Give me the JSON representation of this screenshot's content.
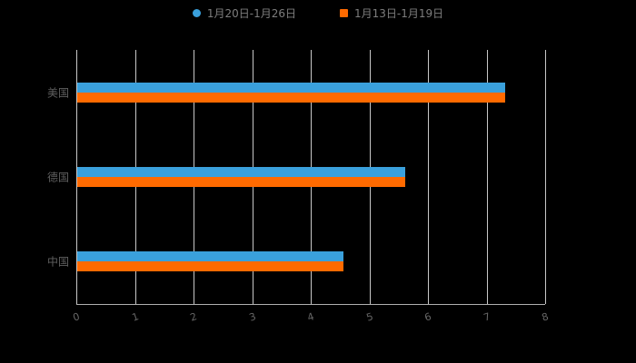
{
  "legend": {
    "items": [
      {
        "label": "1月20日-1月26日",
        "color": "#3aa0dc",
        "marker": "circle"
      },
      {
        "label": "1月13日-1月19日",
        "color": "#ff6a00",
        "marker": "square"
      }
    ]
  },
  "chart_data": {
    "type": "bar",
    "orientation": "horizontal",
    "title": "",
    "xlabel": "",
    "ylabel": "",
    "categories": [
      "美国",
      "德国",
      "中国"
    ],
    "series": [
      {
        "name": "1月20日-1月26日",
        "color": "#3aa0dc",
        "values": [
          7.3,
          5.6,
          4.55
        ]
      },
      {
        "name": "1月13日-1月19日",
        "color": "#ff6a00",
        "values": [
          7.3,
          5.6,
          4.55
        ]
      }
    ],
    "xlim": [
      0,
      8
    ],
    "xticks": [
      "0",
      "1",
      "2",
      "3",
      "4",
      "5",
      "6",
      "7",
      "8"
    ],
    "grid": true,
    "legend_position": "top",
    "colors": {
      "background": "#000000",
      "gridline": "#c8c8c8",
      "axis_text": "#666666",
      "category_text": "#5f5f5f"
    }
  }
}
